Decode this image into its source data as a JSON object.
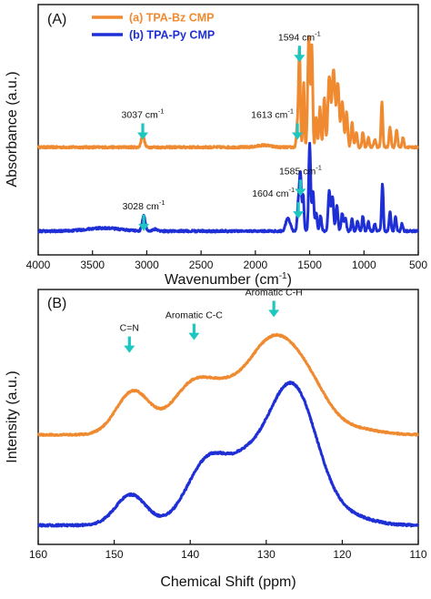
{
  "colors": {
    "tpa_bz": "#f08a30",
    "tpa_py": "#1f2fd6",
    "arrow": "#1ec6c0",
    "frame": "#111111"
  },
  "chart_data": [
    {
      "type": "line",
      "panel_label": "(A)",
      "xlabel": "Wavenumber (cm",
      "xlabel_sup": "-1",
      "xlabel_tail": ")",
      "ylabel": "Absorbance (a.u.)",
      "xlim": [
        4000,
        500
      ],
      "ylim": [
        0,
        1
      ],
      "xticks": [
        4000,
        3500,
        3000,
        2500,
        2000,
        1500,
        1000,
        500
      ],
      "yticks_shown": false,
      "legend": {
        "placement": "top-left",
        "entries": [
          {
            "label": "(a) TPA-Bz CMP",
            "color_key": "tpa_bz"
          },
          {
            "label": "(b) TPA-Py CMP",
            "color_key": "tpa_py"
          }
        ]
      },
      "series": [
        {
          "name": "(a) TPA-Bz CMP",
          "color_key": "tpa_bz",
          "baseline": 0.43,
          "noise": 0.004,
          "peaks": [
            [
              3037,
              0.05,
              14
            ],
            [
              1920,
              0.008,
              60
            ],
            [
              1613,
              0.09,
              9
            ],
            [
              1594,
              0.39,
              8
            ],
            [
              1555,
              0.26,
              7
            ],
            [
              1508,
              0.44,
              10
            ],
            [
              1480,
              0.4,
              8
            ],
            [
              1440,
              0.12,
              8
            ],
            [
              1405,
              0.16,
              9
            ],
            [
              1365,
              0.2,
              9
            ],
            [
              1320,
              0.28,
              12
            ],
            [
              1280,
              0.31,
              14
            ],
            [
              1240,
              0.25,
              12
            ],
            [
              1200,
              0.18,
              12
            ],
            [
              1160,
              0.14,
              10
            ],
            [
              1110,
              0.1,
              9
            ],
            [
              1070,
              0.06,
              9
            ],
            [
              1010,
              0.06,
              8
            ],
            [
              960,
              0.04,
              8
            ],
            [
              900,
              0.03,
              10
            ],
            [
              835,
              0.18,
              8
            ],
            [
              760,
              0.08,
              9
            ],
            [
              700,
              0.07,
              9
            ],
            [
              640,
              0.04,
              8
            ]
          ]
        },
        {
          "name": "(b) TPA-Py CMP",
          "color_key": "tpa_py",
          "baseline": 0.095,
          "noise": 0.004,
          "hump": [
            3400,
            0.012,
            220
          ],
          "peaks": [
            [
              3028,
              0.06,
              14
            ],
            [
              2920,
              0.008,
              25
            ],
            [
              1700,
              0.05,
              20
            ],
            [
              1604,
              0.11,
              10
            ],
            [
              1585,
              0.22,
              9
            ],
            [
              1560,
              0.14,
              8
            ],
            [
              1500,
              0.35,
              9
            ],
            [
              1470,
              0.16,
              9
            ],
            [
              1440,
              0.07,
              9
            ],
            [
              1400,
              0.06,
              9
            ],
            [
              1320,
              0.16,
              10
            ],
            [
              1290,
              0.14,
              10
            ],
            [
              1250,
              0.1,
              10
            ],
            [
              1200,
              0.07,
              10
            ],
            [
              1170,
              0.05,
              9
            ],
            [
              1110,
              0.05,
              8
            ],
            [
              1060,
              0.04,
              9
            ],
            [
              1010,
              0.06,
              8
            ],
            [
              960,
              0.04,
              8
            ],
            [
              900,
              0.03,
              8
            ],
            [
              830,
              0.19,
              8
            ],
            [
              760,
              0.08,
              8
            ],
            [
              710,
              0.06,
              8
            ],
            [
              650,
              0.03,
              8
            ]
          ]
        }
      ],
      "annotations": [
        {
          "text": "3037 cm",
          "sup": "-1",
          "x": 3037,
          "y": 0.54
        },
        {
          "text": "1613 cm",
          "sup": "-1",
          "x": 1613,
          "y": 0.54
        },
        {
          "text": "1594 cm",
          "sup": "-1",
          "x": 1594,
          "y": 0.85
        },
        {
          "text": "3028 cm",
          "sup": "-1",
          "x": 3028,
          "y": 0.175
        },
        {
          "text": "1604 cm",
          "sup": "-1",
          "x": 1604,
          "y": 0.225
        },
        {
          "text": "1585 cm",
          "sup": "-1",
          "x": 1585,
          "y": 0.315
        }
      ]
    },
    {
      "type": "line",
      "panel_label": "(B)",
      "xlabel": "Chemical Shift (ppm)",
      "ylabel": "Intensity (a.u.)",
      "xlim": [
        160,
        110
      ],
      "ylim": [
        0,
        1
      ],
      "xticks": [
        160,
        150,
        140,
        130,
        120,
        110
      ],
      "yticks_shown": false,
      "series": [
        {
          "name": "",
          "color_key": "tpa_bz",
          "baseline": 0.43,
          "noise": 0.003,
          "peaks": [
            [
              147.5,
              0.17,
              2.2
            ],
            [
              139.5,
              0.2,
              2.8
            ],
            [
              135.5,
              0.05,
              2.0
            ],
            [
              129,
              0.38,
              4.0
            ],
            [
              124,
              0.07,
              2.5
            ],
            [
              118,
              0.02,
              3
            ]
          ]
        },
        {
          "name": "",
          "color_key": "tpa_py",
          "baseline": 0.075,
          "noise": 0.004,
          "peaks": [
            [
              147.8,
              0.12,
              2.0
            ],
            [
              137.5,
              0.26,
              2.8
            ],
            [
              133,
              0.08,
              2.0
            ],
            [
              128,
              0.38,
              3.6
            ],
            [
              125.5,
              0.22,
              2.8
            ],
            [
              119,
              0.03,
              3
            ]
          ]
        }
      ],
      "annotations": [
        {
          "text": "C=N",
          "x": 148,
          "y": 0.83
        },
        {
          "text": "Aromatic C-C",
          "x": 139.5,
          "y": 0.88
        },
        {
          "text": "Aromatic C-H",
          "x": 129,
          "y": 0.97
        }
      ]
    }
  ]
}
